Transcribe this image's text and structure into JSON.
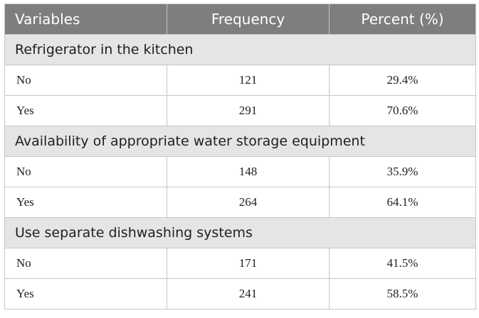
{
  "table": {
    "headers": [
      "Variables",
      "Frequency",
      "Percent (%)"
    ],
    "sections": [
      {
        "title": "Refrigerator in the kitchen",
        "rows": [
          {
            "label": "No",
            "frequency": "121",
            "percent": "29.4%"
          },
          {
            "label": "Yes",
            "frequency": "291",
            "percent": "70.6%"
          }
        ]
      },
      {
        "title": "Availability of appropriate water storage equipment",
        "rows": [
          {
            "label": "No",
            "frequency": "148",
            "percent": "35.9%"
          },
          {
            "label": "Yes",
            "frequency": "264",
            "percent": "64.1%"
          }
        ]
      },
      {
        "title": "Use separate dishwashing systems",
        "rows": [
          {
            "label": "No",
            "frequency": "171",
            "percent": "41.5%"
          },
          {
            "label": "Yes",
            "frequency": "241",
            "percent": "58.5%"
          }
        ]
      }
    ]
  },
  "colors": {
    "header_bg": "#7e7e7e",
    "header_text": "#ffffff",
    "section_bg": "#e5e5e5",
    "border": "#c7c7c7"
  }
}
